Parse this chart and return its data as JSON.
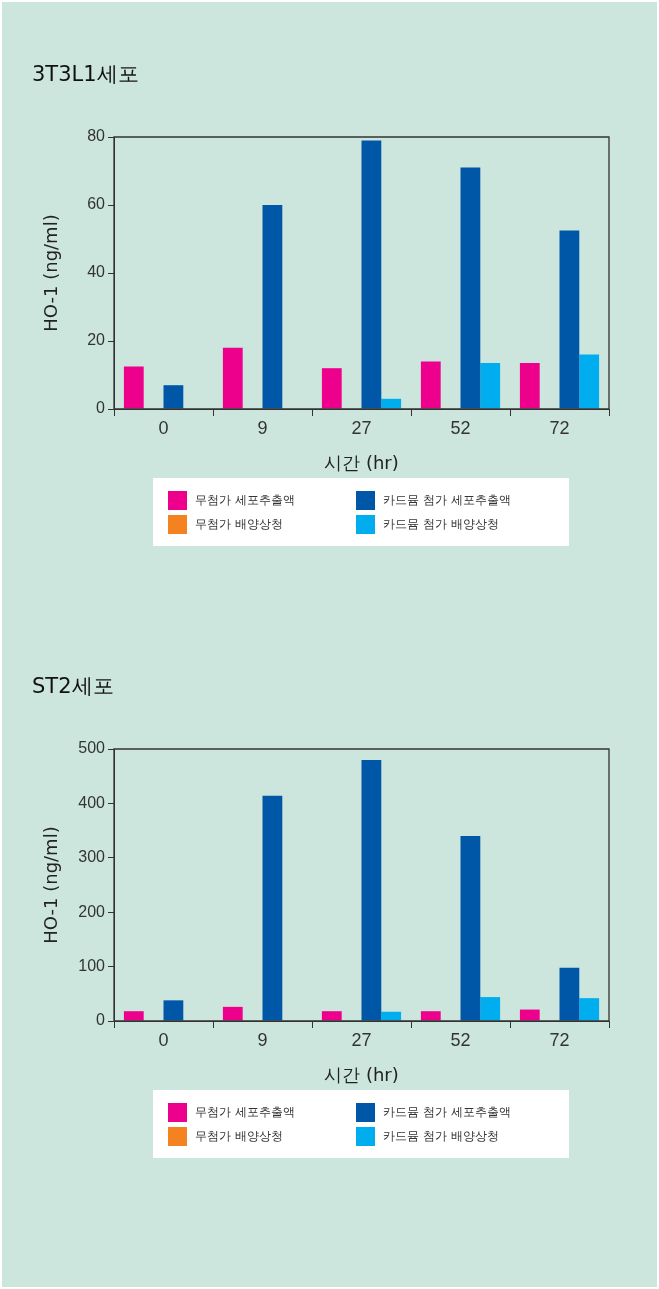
{
  "chart_data": [
    {
      "type": "bar",
      "title": "3T3L1세포",
      "xlabel": "시간 (hr)",
      "ylabel": "HO-1 (ng/ml)",
      "categories": [
        "0",
        "9",
        "27",
        "52",
        "72"
      ],
      "series": [
        {
          "name": "무첨가 세포추출액",
          "color": "#ec008c",
          "values": [
            12.5,
            18,
            12,
            14,
            13.5
          ]
        },
        {
          "name": "무첨가 배양상청",
          "color": "#f58220",
          "values": [
            0,
            0,
            0,
            0,
            0
          ]
        },
        {
          "name": "카드뮴 첨가 세포추출액",
          "color": "#0057a8",
          "values": [
            7,
            60,
            79,
            71,
            52.5
          ]
        },
        {
          "name": "카드뮴 첨가 배양상청",
          "color": "#00aeef",
          "values": [
            0,
            0,
            3,
            13.5,
            16
          ]
        }
      ],
      "ylim": [
        0,
        80
      ],
      "yticks": [
        0,
        20,
        40,
        60,
        80
      ],
      "legend": "bottom"
    },
    {
      "type": "bar",
      "title": "ST2세포",
      "xlabel": "시간 (hr)",
      "ylabel": "HO-1 (ng/ml)",
      "categories": [
        "0",
        "9",
        "27",
        "52",
        "72"
      ],
      "series": [
        {
          "name": "무첨가 세포추출액",
          "color": "#ec008c",
          "values": [
            18,
            26,
            18,
            18,
            21
          ]
        },
        {
          "name": "무첨가 배양상청",
          "color": "#f58220",
          "values": [
            0,
            0,
            0,
            0,
            0
          ]
        },
        {
          "name": "카드뮴 첨가 세포추출액",
          "color": "#0057a8",
          "values": [
            38,
            414,
            480,
            340,
            98
          ]
        },
        {
          "name": "카드뮴 첨가 배양상청",
          "color": "#00aeef",
          "values": [
            0,
            0,
            17,
            44,
            42
          ]
        }
      ],
      "ylim": [
        0,
        500
      ],
      "yticks": [
        0,
        100,
        200,
        300,
        400,
        500
      ],
      "legend": "bottom"
    }
  ]
}
